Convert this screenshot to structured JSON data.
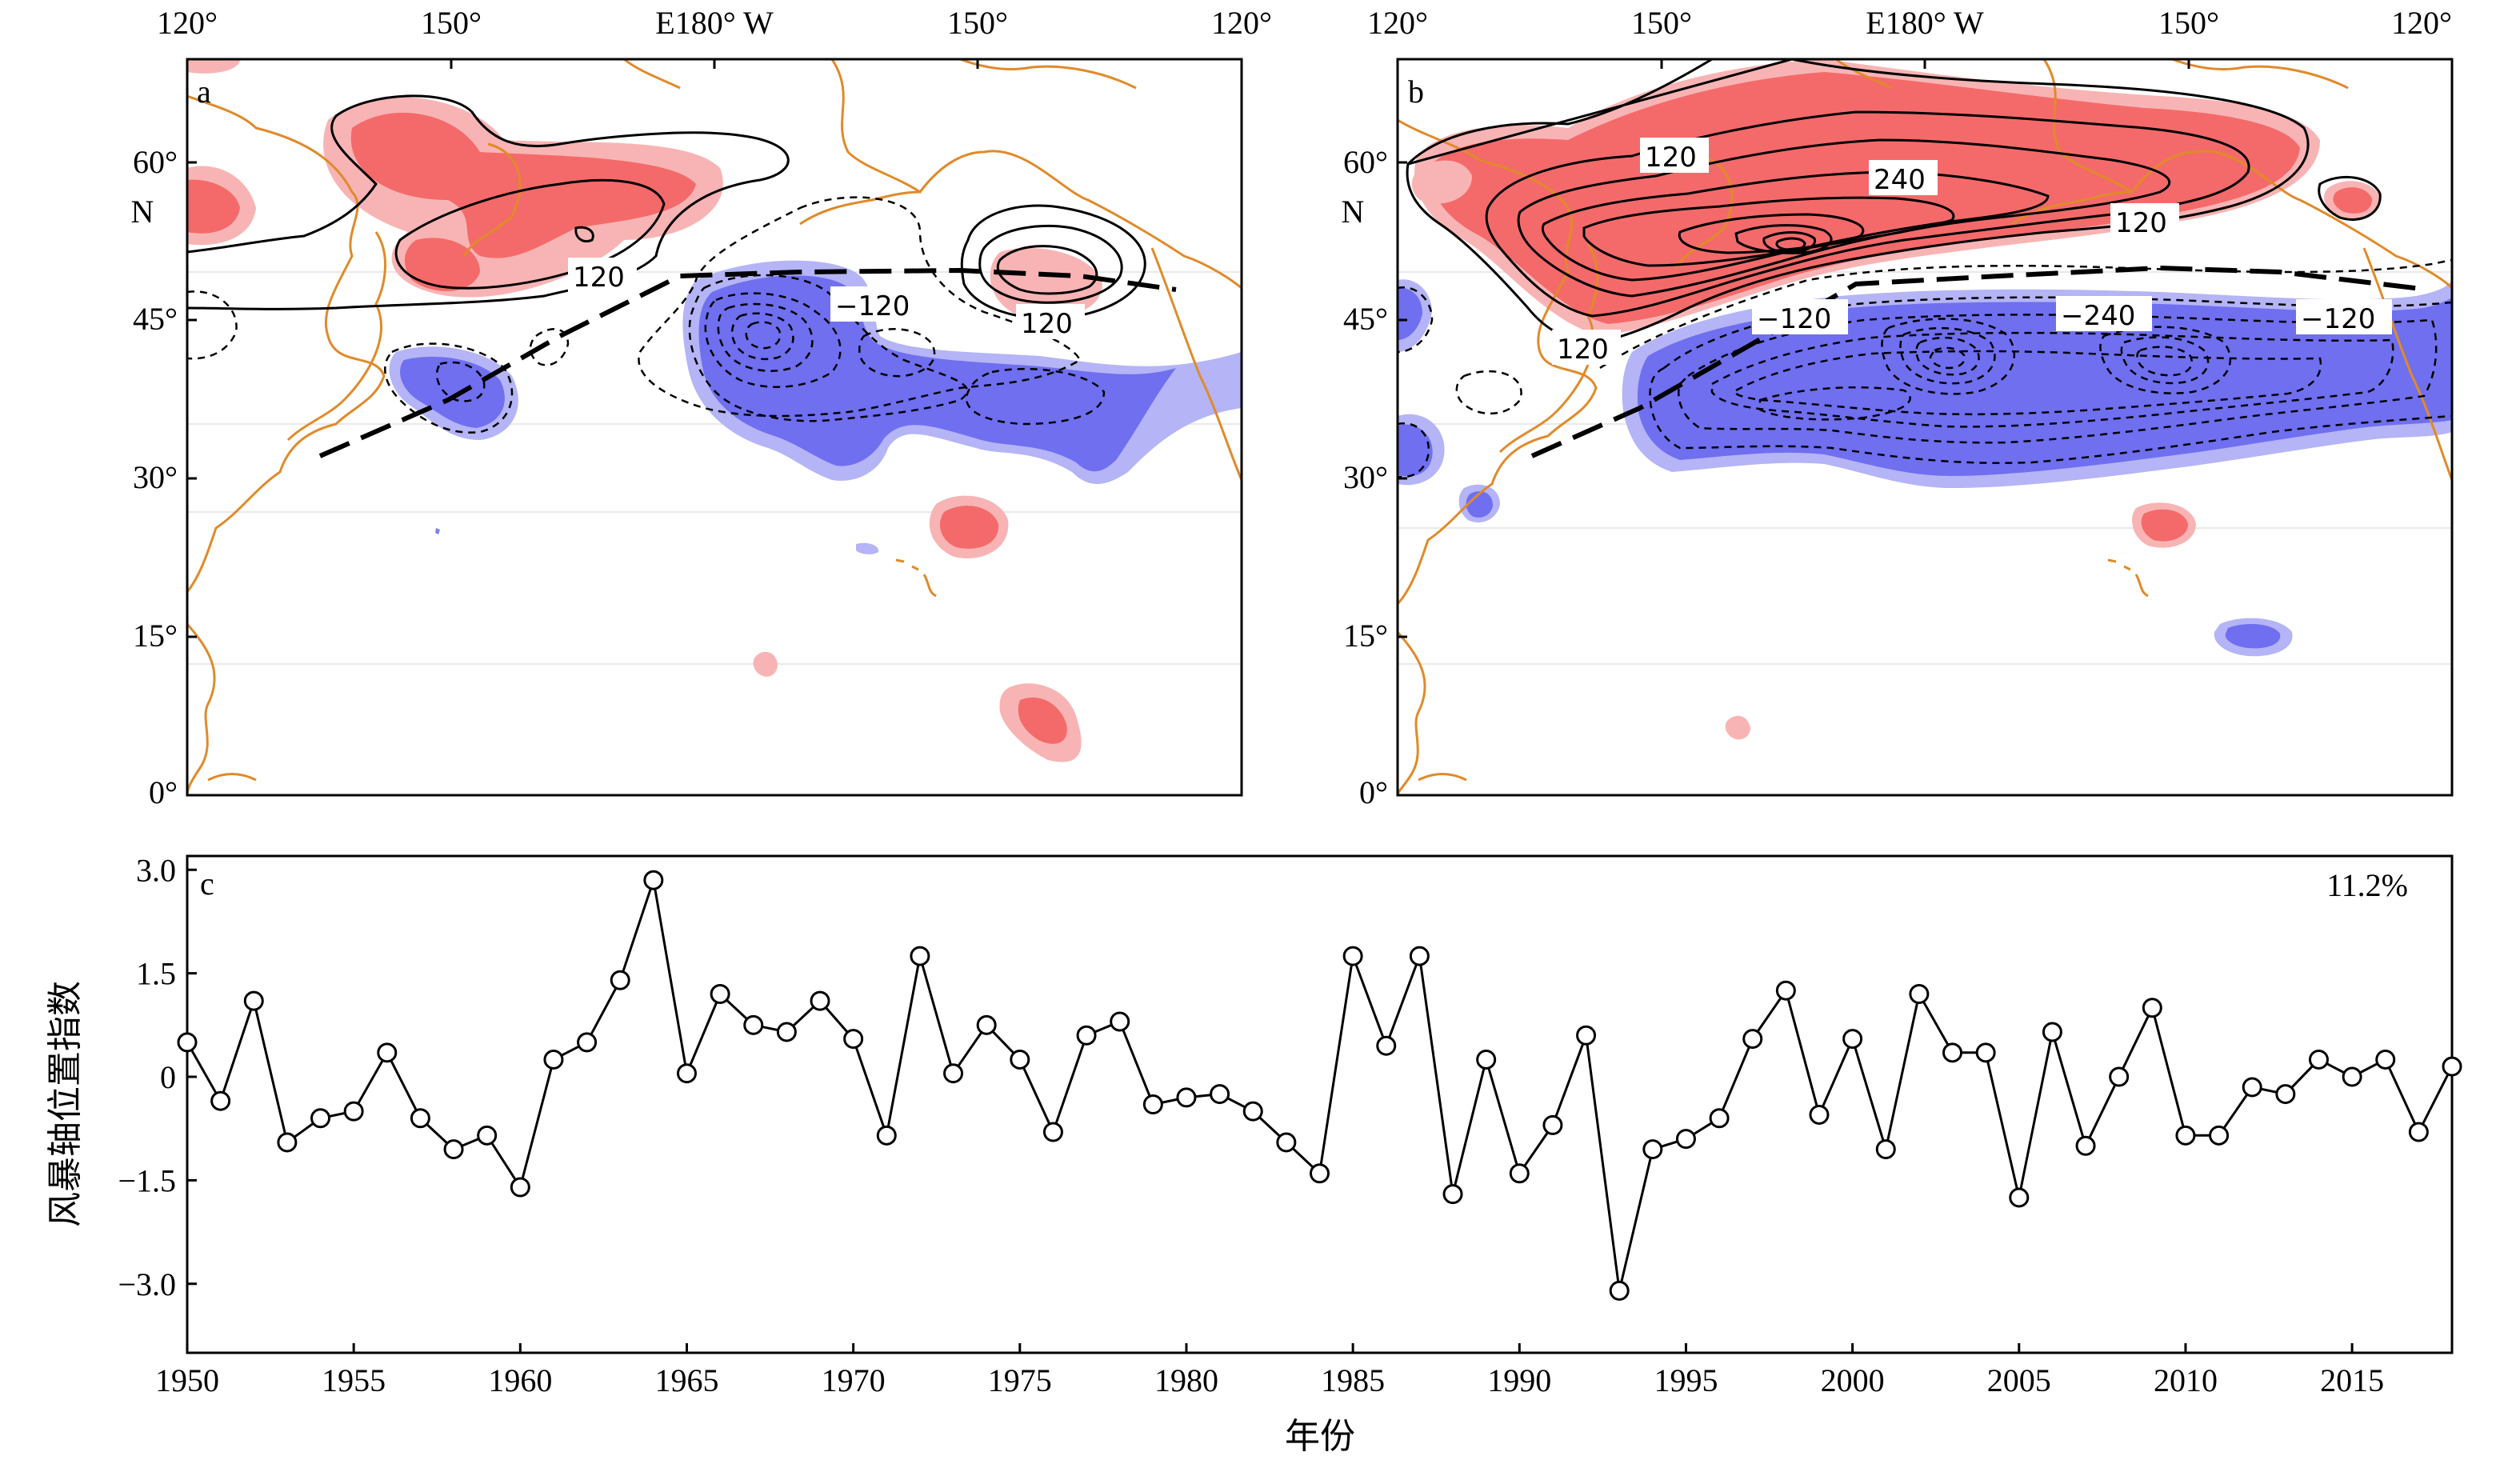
{
  "colors": {
    "positive_fill": "#f46a6a",
    "positive_fill_light": "#f8b4b4",
    "negative_fill": "#6f6ff0",
    "negative_fill_light": "#b4b4f6",
    "coastline": "#e08a2a",
    "line": "#000000"
  },
  "maps": {
    "top_ticks": [
      "120°",
      "150°",
      "E180° W",
      "150°",
      "120°"
    ],
    "lat_ticks": [
      "60°",
      "45°",
      "30°",
      "15°",
      "0°"
    ],
    "lat_hemisphere": "N",
    "panel_a": {
      "letter": "a",
      "contour_labels": [
        "120",
        "−120",
        "120"
      ]
    },
    "panel_b": {
      "letter": "b",
      "contour_labels": [
        "120",
        "240",
        "120",
        "−120",
        "−240",
        "−120",
        "120"
      ]
    }
  },
  "chart_data": {
    "type": "line",
    "panel_letter": "c",
    "annotation": "11.2%",
    "xlabel": "年份",
    "ylabel": "风暴轴位置指数",
    "xlim": [
      1950,
      2018
    ],
    "ylim": [
      -4.0,
      3.2
    ],
    "xticks": [
      "1950",
      "1955",
      "1960",
      "1965",
      "1970",
      "1975",
      "1980",
      "1985",
      "1990",
      "1995",
      "2000",
      "2005",
      "2010",
      "2015"
    ],
    "yticks": [
      "3.0",
      "1.5",
      "0",
      "−1.5",
      "−3.0"
    ],
    "ytick_values": [
      3.0,
      1.5,
      0,
      -1.5,
      -3.0
    ],
    "grid": false,
    "marker": "open-circle",
    "x": [
      1950,
      1951,
      1952,
      1953,
      1954,
      1955,
      1956,
      1957,
      1958,
      1959,
      1960,
      1961,
      1962,
      1963,
      1964,
      1965,
      1966,
      1967,
      1968,
      1969,
      1970,
      1971,
      1972,
      1973,
      1974,
      1975,
      1976,
      1977,
      1978,
      1979,
      1980,
      1981,
      1982,
      1983,
      1984,
      1985,
      1986,
      1987,
      1988,
      1989,
      1990,
      1991,
      1992,
      1993,
      1994,
      1995,
      1996,
      1997,
      1998,
      1999,
      2000,
      2001,
      2002,
      2003,
      2004,
      2005,
      2006,
      2007,
      2008,
      2009,
      2010,
      2011,
      2012,
      2013,
      2014,
      2015,
      2016,
      2017,
      2018
    ],
    "values": [
      0.5,
      -0.35,
      1.1,
      -0.95,
      -0.6,
      -0.5,
      0.35,
      -0.6,
      -1.05,
      -0.85,
      -1.6,
      0.25,
      0.5,
      1.4,
      2.85,
      0.05,
      1.2,
      0.75,
      0.65,
      1.1,
      0.55,
      -0.85,
      1.75,
      0.05,
      0.75,
      0.25,
      -0.8,
      0.6,
      0.8,
      -0.4,
      -0.3,
      -0.25,
      -0.5,
      -0.95,
      -1.4,
      1.75,
      0.45,
      1.75,
      -1.7,
      0.25,
      -1.4,
      -0.7,
      0.6,
      -3.1,
      -1.05,
      -0.9,
      -0.6,
      0.55,
      1.25,
      -0.55,
      0.55,
      -1.05,
      1.2,
      0.35,
      0.35,
      -1.75,
      0.65,
      -1.0,
      0.0,
      1.0,
      -0.85,
      -0.85,
      -0.15,
      -0.25,
      0.25,
      0.0,
      0.25,
      -0.8,
      0.15
    ]
  }
}
